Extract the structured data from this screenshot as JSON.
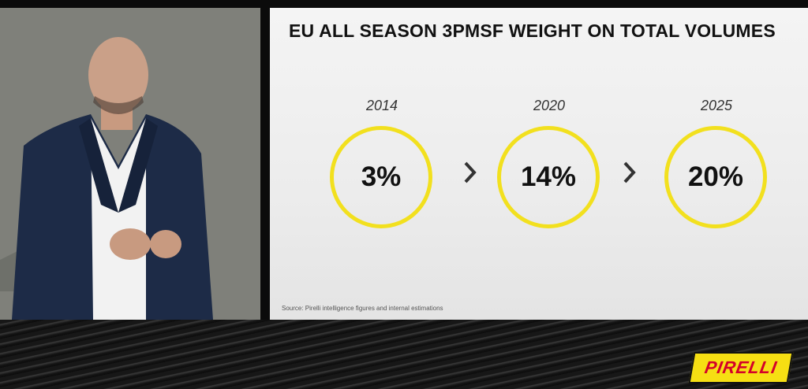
{
  "slide": {
    "title": "EU ALL SEASON 3PMSF WEIGHT ON TOTAL VOLUMES",
    "milestones": [
      {
        "year": "2014",
        "value": "3%"
      },
      {
        "year": "2020",
        "value": "14%"
      },
      {
        "year": "2025",
        "value": "20%"
      }
    ],
    "source": "Source: Pirelli intelligence figures and internal estimations"
  },
  "brand": {
    "logo_text": "PIRELLI",
    "logo_bg": "#f6df13",
    "logo_fg": "#d4002a"
  },
  "colors": {
    "circle_ring": "#f2e01e",
    "suit": "#1d2b47"
  }
}
